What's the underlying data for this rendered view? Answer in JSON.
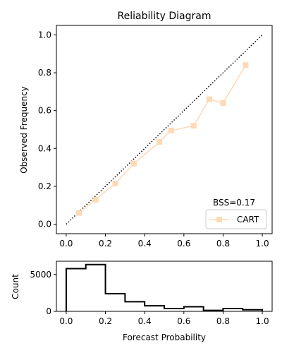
{
  "chart_data": [
    {
      "type": "line",
      "title": "Reliability Diagram",
      "xlabel": "",
      "ylabel": "Observed Frequency",
      "xlim": [
        -0.05,
        1.05
      ],
      "ylim": [
        -0.05,
        1.05
      ],
      "xticks": [
        "0.0",
        "0.2",
        "0.4",
        "0.6",
        "0.8",
        "1.0"
      ],
      "xtick_values": [
        0,
        0.2,
        0.4,
        0.6,
        0.8,
        1.0
      ],
      "yticks": [
        "0.0",
        "0.2",
        "0.4",
        "0.6",
        "0.8",
        "1.0"
      ],
      "ytick_values": [
        0,
        0.2,
        0.4,
        0.6,
        0.8,
        1.0
      ],
      "reference_line": {
        "x": [
          0,
          1
        ],
        "y": [
          0,
          1
        ],
        "style": "dotted",
        "color": "#000000"
      },
      "series": [
        {
          "name": "CART",
          "color": "#fdd9b5",
          "marker": "square",
          "x": [
            0.065,
            0.15,
            0.25,
            0.345,
            0.475,
            0.535,
            0.65,
            0.73,
            0.8,
            0.915
          ],
          "y": [
            0.06,
            0.13,
            0.215,
            0.32,
            0.435,
            0.495,
            0.52,
            0.66,
            0.64,
            0.84
          ]
        }
      ],
      "annotation": "BSS=0.17",
      "legend": "bottom-right",
      "grid": false
    },
    {
      "type": "bar",
      "title": "",
      "xlabel": "Forecast Probability",
      "ylabel": "Count",
      "style": "step-histogram",
      "xlim": [
        -0.05,
        1.05
      ],
      "ylim": [
        0,
        6800
      ],
      "xticks": [
        "0.0",
        "0.2",
        "0.4",
        "0.6",
        "0.8",
        "1.0"
      ],
      "xtick_values": [
        0,
        0.2,
        0.4,
        0.6,
        0.8,
        1.0
      ],
      "yticks": [
        "0",
        "5000"
      ],
      "ytick_values": [
        0,
        5000
      ],
      "bin_edges": [
        0,
        0.1,
        0.2,
        0.3,
        0.4,
        0.5,
        0.6,
        0.7,
        0.8,
        0.9,
        1.0
      ],
      "values": [
        5800,
        6350,
        2400,
        1300,
        750,
        380,
        620,
        130,
        380,
        220
      ],
      "color": "#000000"
    }
  ]
}
